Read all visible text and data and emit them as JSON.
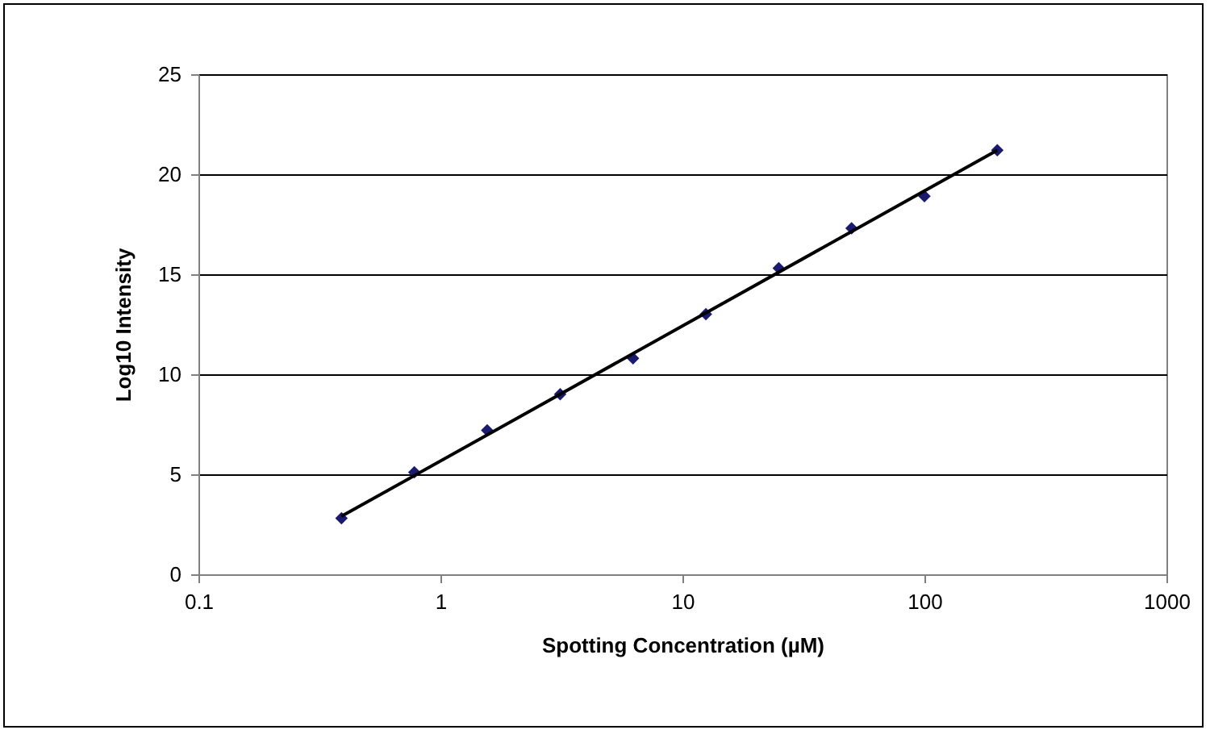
{
  "chart_data": {
    "type": "scatter",
    "xlabel": "Spotting Concentration (µM)",
    "ylabel": "Log10 Intensity",
    "x": [
      0.39,
      0.78,
      1.56,
      3.125,
      6.25,
      12.5,
      25,
      50,
      100,
      200
    ],
    "series": [
      {
        "color": "#1a1a6e",
        "marker": "diamond",
        "values": [
          2.8,
          5.1,
          7.2,
          9.0,
          10.8,
          13.0,
          15.3,
          17.3,
          18.9,
          21.2
        ]
      },
      {
        "type": "line",
        "color": "#000000",
        "x": [
          0.39,
          200
        ],
        "values": [
          2.9,
          21.2
        ]
      }
    ],
    "xlim": [
      0.1,
      1000
    ],
    "xticks": [
      0.1,
      1,
      10,
      100,
      1000
    ],
    "ylim": [
      0,
      25
    ],
    "yticks": [
      0,
      5,
      10,
      15,
      20,
      25
    ],
    "log": "x",
    "grid": "y"
  }
}
